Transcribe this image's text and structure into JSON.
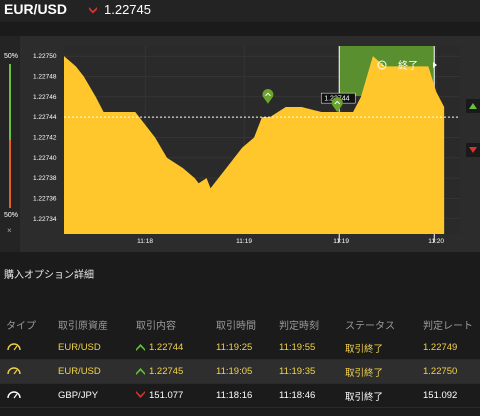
{
  "header": {
    "pair": "EUR/USD",
    "rate": "1.22745",
    "rate_direction": "down"
  },
  "chart": {
    "gauge_top": "50%",
    "gauge_bottom": "50%",
    "close_label": "×",
    "y_ticks": [
      "1.22750",
      "1.22748",
      "1.22746",
      "1.22744",
      "1.22742",
      "1.22740",
      "1.22738",
      "1.22736",
      "1.22734"
    ],
    "x_ticks": [
      "11:18",
      "11:19",
      "11:19",
      "11:20"
    ],
    "current_price_label": "1.22744",
    "end_label": "終了",
    "colors": {
      "area": "#ffc72c",
      "green": "#5a8f2f",
      "marker": "#6aa32e",
      "up": "#6abf3c",
      "down": "#e03030"
    }
  },
  "chart_data": {
    "type": "area",
    "ylim": [
      1.227325,
      1.22751
    ],
    "series": [
      {
        "points": [
          [
            0,
            1.2275
          ],
          [
            3,
            1.22749
          ],
          [
            5,
            1.22748
          ],
          [
            8,
            1.22746
          ],
          [
            10,
            1.227445
          ],
          [
            18,
            1.227445
          ],
          [
            23,
            1.22742
          ],
          [
            26,
            1.2274
          ],
          [
            30,
            1.22739
          ],
          [
            33,
            1.22738
          ],
          [
            34,
            1.227375
          ],
          [
            36,
            1.22738
          ],
          [
            37,
            1.22737
          ],
          [
            39,
            1.22738
          ],
          [
            41,
            1.22739
          ],
          [
            45,
            1.22741
          ],
          [
            48,
            1.22742
          ],
          [
            50,
            1.22744
          ],
          [
            52,
            1.22744
          ],
          [
            56,
            1.22745
          ],
          [
            60,
            1.22745
          ],
          [
            65,
            1.227445
          ],
          [
            70,
            1.227445
          ],
          [
            73,
            1.227445
          ],
          [
            75,
            1.22746
          ],
          [
            78,
            1.2275
          ],
          [
            81,
            1.22749
          ],
          [
            84,
            1.22749
          ],
          [
            90,
            1.22749
          ],
          [
            92,
            1.22749
          ],
          [
            94,
            1.227465
          ],
          [
            96,
            1.22745
          ]
        ]
      }
    ],
    "entry_markers": [
      [
        51.5,
        1.22746
      ],
      [
        69,
        1.227452
      ]
    ],
    "expiry_band": [
      69.5,
      93.5
    ]
  },
  "details": {
    "title": "購入オプション詳細",
    "columns": [
      "タイプ",
      "取引原資産",
      "取引内容",
      "取引時間",
      "判定時刻",
      "ステータス",
      "判定レート"
    ],
    "rows": [
      {
        "asset": "EUR/USD",
        "direction": "up",
        "rate": "1.22744",
        "time": "11:19:25",
        "judge": "11:19:55",
        "status": "取引終了",
        "judge_rate": "1.22749"
      },
      {
        "asset": "EUR/USD",
        "direction": "up",
        "rate": "1.22745",
        "time": "11:19:05",
        "judge": "11:19:35",
        "status": "取引終了",
        "judge_rate": "1.22750"
      },
      {
        "asset": "GBP/JPY",
        "direction": "down",
        "rate": "151.077",
        "time": "11:18:16",
        "judge": "11:18:46",
        "status": "取引終了",
        "judge_rate": "151.092"
      }
    ]
  }
}
